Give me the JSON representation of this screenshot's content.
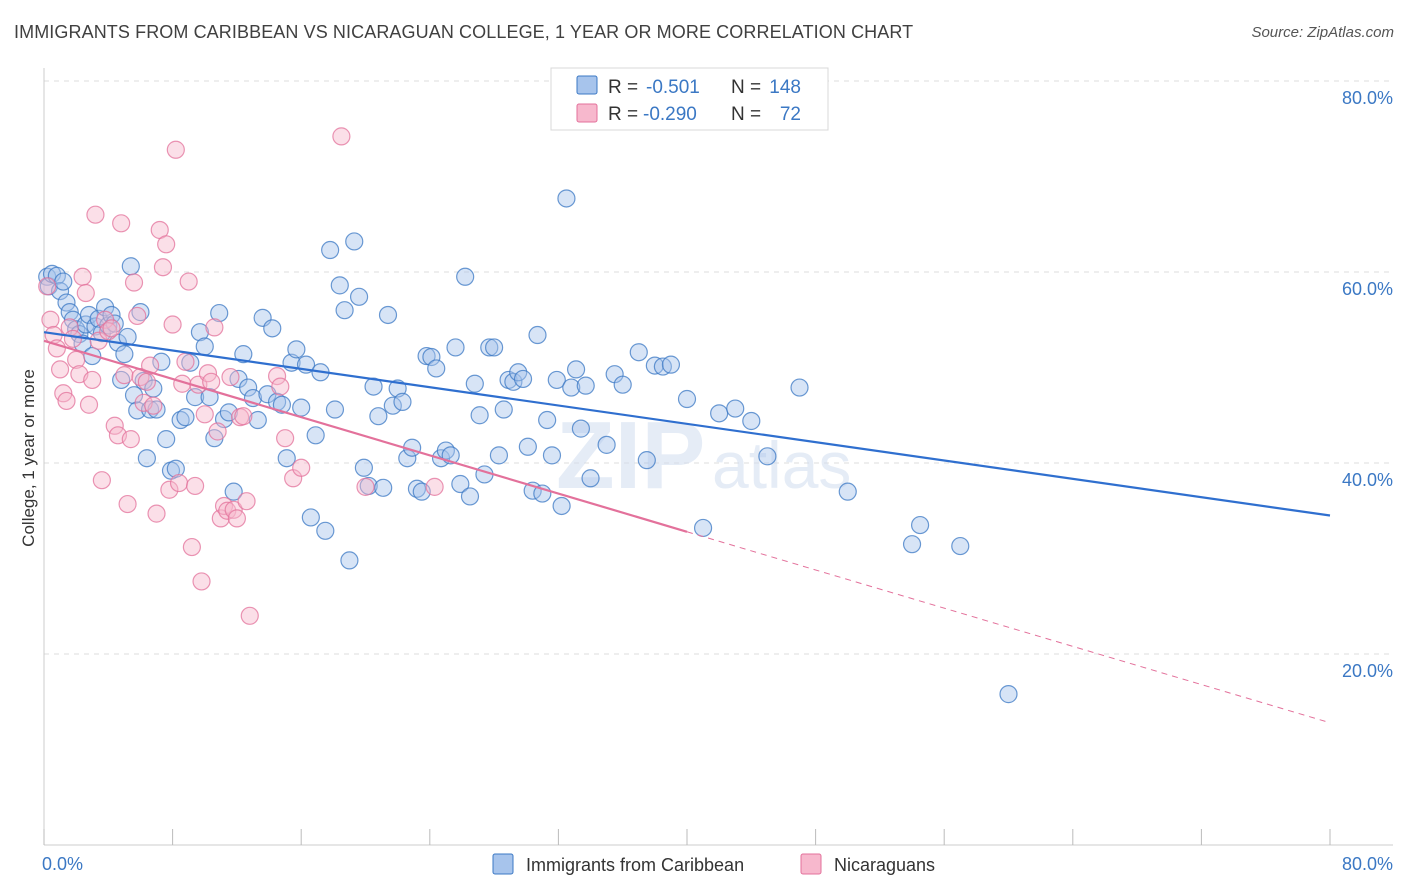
{
  "title": "IMMIGRANTS FROM CARIBBEAN VS NICARAGUAN COLLEGE, 1 YEAR OR MORE CORRELATION CHART",
  "source": "Source: ZipAtlas.com",
  "watermark": {
    "part1": "ZIP",
    "part2": "atlas"
  },
  "colors": {
    "blue": "#3b78c4",
    "blue_fill": "#a7c4ec",
    "blue_line": "#2f6fcf",
    "pink": "#e3719b",
    "pink_fill": "#f7b8cd",
    "grid": "#dddddd",
    "axis_text": "#3b78c4"
  },
  "legend": {
    "rows": [
      {
        "r_label": "R =",
        "r_value": "-0.501",
        "n_label": "N =",
        "n_value": "148"
      },
      {
        "r_label": "R =",
        "r_value": "-0.290",
        "n_label": "N =",
        "n_value": "72"
      }
    ]
  },
  "chart_data": {
    "type": "scatter",
    "title": "IMMIGRANTS FROM CARIBBEAN VS NICARAGUAN COLLEGE, 1 YEAR OR MORE CORRELATION CHART",
    "xlabel": "",
    "ylabel": "College, 1 year or more",
    "xlim": [
      0,
      80
    ],
    "ylim": [
      0,
      80
    ],
    "x_tick_labels": [
      "0.0%",
      "80.0%"
    ],
    "y_tick_labels": [
      "20.0%",
      "40.0%",
      "60.0%",
      "80.0%"
    ],
    "y_ticks": [
      20,
      40,
      60,
      80
    ],
    "grid": true,
    "legend_position": "top-center",
    "series": [
      {
        "name": "Immigrants from Caribbean",
        "color": "#3b78c4",
        "r": -0.501,
        "n": 148,
        "trend": {
          "x": [
            0,
            80
          ],
          "y": [
            53.7,
            34.5
          ]
        },
        "points": [
          [
            0.2,
            59.5
          ],
          [
            0.3,
            58.5
          ],
          [
            0.5,
            59.8
          ],
          [
            0.8,
            59.6
          ],
          [
            1.0,
            58.0
          ],
          [
            1.2,
            59.0
          ],
          [
            1.4,
            56.8
          ],
          [
            1.6,
            55.8
          ],
          [
            1.8,
            55.0
          ],
          [
            2.0,
            54.0
          ],
          [
            2.2,
            53.5
          ],
          [
            2.4,
            52.5
          ],
          [
            2.6,
            54.5
          ],
          [
            2.8,
            55.5
          ],
          [
            3.0,
            51.2
          ],
          [
            3.2,
            54.3
          ],
          [
            3.4,
            55.1
          ],
          [
            3.6,
            53.6
          ],
          [
            3.8,
            56.3
          ],
          [
            4.0,
            54.4
          ],
          [
            4.2,
            55.5
          ],
          [
            4.4,
            54.6
          ],
          [
            4.6,
            52.6
          ],
          [
            4.8,
            48.7
          ],
          [
            5.0,
            51.4
          ],
          [
            5.2,
            53.2
          ],
          [
            5.4,
            60.6
          ],
          [
            5.6,
            47.1
          ],
          [
            5.8,
            45.5
          ],
          [
            6.0,
            55.8
          ],
          [
            6.2,
            48.6
          ],
          [
            6.4,
            40.5
          ],
          [
            6.6,
            45.6
          ],
          [
            6.8,
            47.8
          ],
          [
            7.0,
            45.6
          ],
          [
            7.3,
            50.6
          ],
          [
            7.6,
            42.5
          ],
          [
            7.9,
            39.2
          ],
          [
            8.2,
            39.4
          ],
          [
            8.5,
            44.5
          ],
          [
            8.8,
            44.8
          ],
          [
            9.1,
            50.5
          ],
          [
            9.4,
            46.9
          ],
          [
            9.7,
            53.7
          ],
          [
            10.0,
            52.2
          ],
          [
            10.3,
            46.9
          ],
          [
            10.6,
            42.6
          ],
          [
            10.9,
            55.7
          ],
          [
            11.2,
            44.6
          ],
          [
            11.5,
            45.3
          ],
          [
            11.8,
            37.0
          ],
          [
            12.1,
            48.8
          ],
          [
            12.4,
            51.4
          ],
          [
            12.7,
            47.9
          ],
          [
            13.0,
            46.8
          ],
          [
            13.3,
            44.5
          ],
          [
            13.6,
            55.2
          ],
          [
            13.9,
            47.2
          ],
          [
            14.2,
            54.1
          ],
          [
            14.5,
            46.4
          ],
          [
            14.8,
            46.1
          ],
          [
            15.1,
            40.5
          ],
          [
            15.4,
            50.5
          ],
          [
            15.7,
            51.9
          ],
          [
            16.0,
            45.8
          ],
          [
            16.3,
            50.3
          ],
          [
            16.6,
            34.3
          ],
          [
            16.9,
            42.9
          ],
          [
            17.2,
            49.5
          ],
          [
            17.5,
            32.9
          ],
          [
            17.8,
            62.3
          ],
          [
            18.1,
            45.6
          ],
          [
            18.4,
            58.6
          ],
          [
            18.7,
            56.0
          ],
          [
            19.0,
            29.8
          ],
          [
            19.3,
            63.2
          ],
          [
            19.6,
            57.4
          ],
          [
            19.9,
            39.5
          ],
          [
            20.2,
            37.6
          ],
          [
            20.5,
            48.0
          ],
          [
            20.8,
            44.9
          ],
          [
            21.1,
            37.4
          ],
          [
            21.4,
            55.5
          ],
          [
            21.7,
            46.0
          ],
          [
            22.0,
            47.8
          ],
          [
            22.3,
            46.4
          ],
          [
            22.6,
            40.5
          ],
          [
            22.9,
            41.6
          ],
          [
            23.2,
            37.3
          ],
          [
            23.5,
            37.0
          ],
          [
            23.8,
            51.2
          ],
          [
            24.1,
            51.1
          ],
          [
            24.4,
            49.9
          ],
          [
            24.7,
            40.5
          ],
          [
            25.0,
            41.3
          ],
          [
            25.3,
            40.8
          ],
          [
            25.6,
            52.1
          ],
          [
            25.9,
            37.8
          ],
          [
            26.2,
            59.5
          ],
          [
            26.5,
            36.5
          ],
          [
            26.8,
            48.3
          ],
          [
            27.1,
            45.0
          ],
          [
            27.4,
            38.8
          ],
          [
            27.7,
            52.1
          ],
          [
            28.0,
            52.1
          ],
          [
            28.3,
            40.8
          ],
          [
            28.6,
            45.6
          ],
          [
            28.9,
            48.7
          ],
          [
            29.2,
            48.5
          ],
          [
            29.5,
            49.5
          ],
          [
            29.8,
            48.8
          ],
          [
            30.1,
            41.7
          ],
          [
            30.4,
            37.1
          ],
          [
            30.7,
            53.4
          ],
          [
            31.0,
            36.8
          ],
          [
            31.3,
            44.5
          ],
          [
            31.6,
            40.8
          ],
          [
            31.9,
            48.7
          ],
          [
            32.2,
            35.5
          ],
          [
            32.5,
            67.7
          ],
          [
            32.8,
            47.9
          ],
          [
            33.1,
            49.8
          ],
          [
            33.4,
            43.6
          ],
          [
            33.7,
            48.1
          ],
          [
            34.0,
            38.4
          ],
          [
            35.0,
            41.9
          ],
          [
            35.5,
            49.3
          ],
          [
            36.0,
            48.2
          ],
          [
            37.0,
            51.6
          ],
          [
            37.5,
            40.3
          ],
          [
            38.0,
            50.2
          ],
          [
            38.5,
            50.1
          ],
          [
            39.0,
            50.3
          ],
          [
            40.0,
            46.7
          ],
          [
            41.0,
            33.2
          ],
          [
            42.0,
            45.2
          ],
          [
            43.0,
            45.7
          ],
          [
            44.0,
            44.4
          ],
          [
            45.0,
            40.7
          ],
          [
            47.0,
            47.9
          ],
          [
            50.0,
            37.0
          ],
          [
            54.0,
            31.5
          ],
          [
            54.5,
            33.5
          ],
          [
            57.0,
            31.3
          ],
          [
            60.0,
            15.8
          ]
        ]
      },
      {
        "name": "Nicaraguans",
        "color": "#e3719b",
        "r": -0.29,
        "n": 72,
        "trend": {
          "x": [
            0,
            40
          ],
          "y": [
            52.8,
            32.8
          ]
        },
        "trend_extension": {
          "x": [
            40,
            80
          ],
          "y": [
            32.8,
            12.8
          ]
        },
        "points": [
          [
            0.2,
            58.5
          ],
          [
            0.4,
            55.0
          ],
          [
            0.6,
            53.4
          ],
          [
            0.8,
            52.0
          ],
          [
            1.0,
            49.8
          ],
          [
            1.2,
            47.3
          ],
          [
            1.4,
            46.5
          ],
          [
            1.6,
            54.2
          ],
          [
            1.8,
            53.0
          ],
          [
            2.0,
            50.8
          ],
          [
            2.2,
            49.3
          ],
          [
            2.4,
            59.5
          ],
          [
            2.6,
            57.8
          ],
          [
            2.8,
            46.1
          ],
          [
            3.0,
            48.7
          ],
          [
            3.2,
            66.0
          ],
          [
            3.4,
            52.8
          ],
          [
            3.6,
            38.2
          ],
          [
            3.8,
            55.0
          ],
          [
            4.0,
            53.8
          ],
          [
            4.2,
            54.1
          ],
          [
            4.4,
            43.9
          ],
          [
            4.6,
            42.9
          ],
          [
            4.8,
            65.1
          ],
          [
            5.0,
            49.2
          ],
          [
            5.2,
            35.7
          ],
          [
            5.4,
            42.5
          ],
          [
            5.6,
            58.9
          ],
          [
            5.8,
            55.4
          ],
          [
            6.0,
            49.0
          ],
          [
            6.2,
            46.3
          ],
          [
            6.4,
            48.5
          ],
          [
            6.6,
            50.2
          ],
          [
            6.8,
            46.0
          ],
          [
            7.0,
            34.7
          ],
          [
            7.2,
            64.4
          ],
          [
            7.4,
            60.5
          ],
          [
            7.6,
            62.9
          ],
          [
            7.8,
            37.2
          ],
          [
            8.0,
            54.5
          ],
          [
            8.2,
            72.8
          ],
          [
            8.4,
            37.9
          ],
          [
            8.6,
            48.3
          ],
          [
            8.8,
            50.6
          ],
          [
            9.0,
            59.0
          ],
          [
            9.2,
            31.2
          ],
          [
            9.4,
            37.6
          ],
          [
            9.6,
            48.2
          ],
          [
            9.8,
            27.6
          ],
          [
            10.0,
            45.1
          ],
          [
            10.2,
            49.4
          ],
          [
            10.4,
            48.5
          ],
          [
            10.6,
            54.2
          ],
          [
            10.8,
            43.3
          ],
          [
            11.0,
            34.2
          ],
          [
            11.2,
            35.5
          ],
          [
            11.4,
            35.0
          ],
          [
            11.6,
            49.0
          ],
          [
            11.8,
            35.1
          ],
          [
            12.0,
            34.2
          ],
          [
            12.2,
            44.8
          ],
          [
            12.4,
            44.9
          ],
          [
            12.6,
            36.0
          ],
          [
            12.8,
            24.0
          ],
          [
            14.5,
            49.1
          ],
          [
            14.7,
            48.0
          ],
          [
            15.0,
            42.6
          ],
          [
            15.5,
            38.4
          ],
          [
            16.0,
            39.5
          ],
          [
            18.5,
            74.2
          ],
          [
            20.0,
            37.5
          ],
          [
            24.3,
            37.5
          ]
        ]
      }
    ]
  },
  "bottom_legend": [
    {
      "label": "Immigrants from Caribbean"
    },
    {
      "label": "Nicaraguans"
    }
  ]
}
